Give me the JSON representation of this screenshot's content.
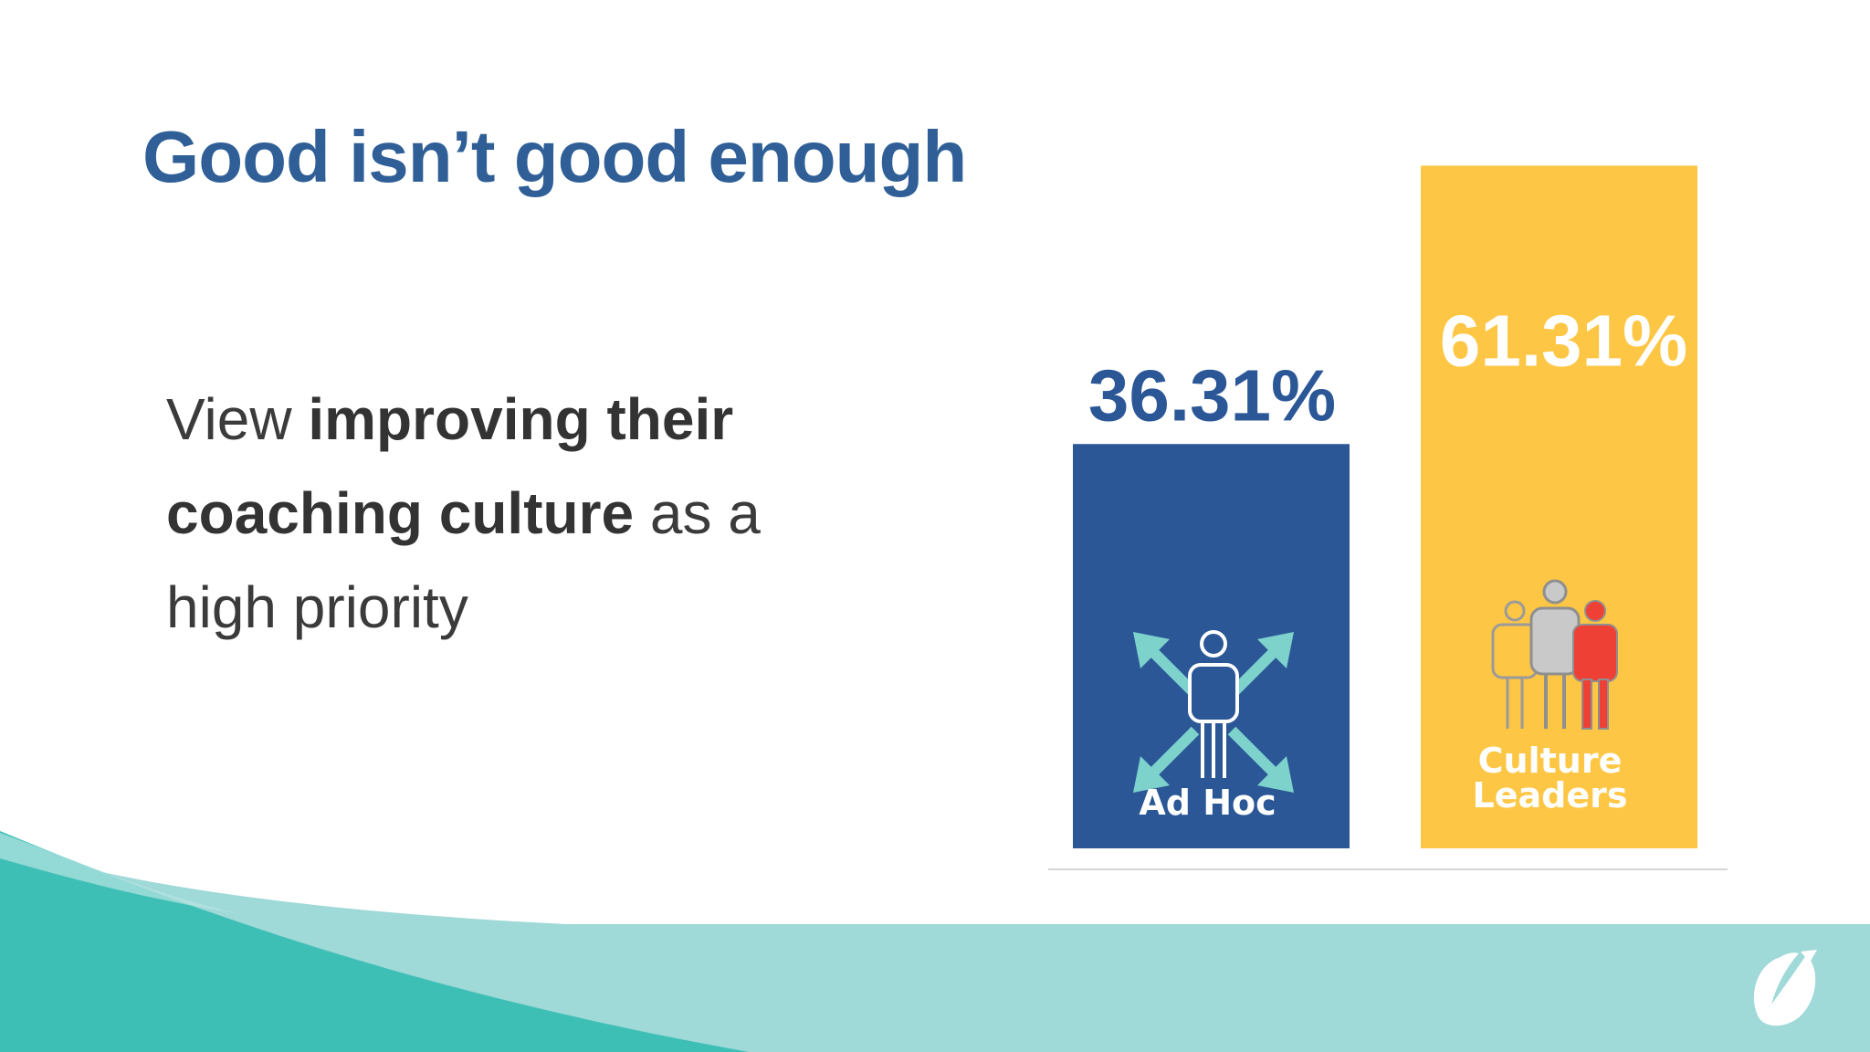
{
  "slide": {
    "title": "Good isn’t good enough",
    "statement": {
      "part1": "View ",
      "part2_bold": "improving their coaching culture",
      "part3": " as a high priority"
    }
  },
  "colors": {
    "title": "#2f5f96",
    "ad_hoc": "#2b5797",
    "culture_leaders": "#fdc644",
    "teal_light": "#9fd9d8",
    "teal_dark": "#3ebfb6"
  },
  "chart_data": {
    "type": "bar",
    "categories": [
      "Ad Hoc",
      "Culture Leaders"
    ],
    "category_lines": [
      [
        "Ad Hoc"
      ],
      [
        "Culture",
        "Leaders"
      ]
    ],
    "values": [
      36.31,
      61.31
    ],
    "value_labels": [
      "36.31%",
      "61.31%"
    ],
    "unit": "%",
    "ylim": [
      0,
      62
    ],
    "grid": false,
    "legend": "none",
    "icons": [
      "people-arrows-icon",
      "group-people-icon"
    ]
  }
}
